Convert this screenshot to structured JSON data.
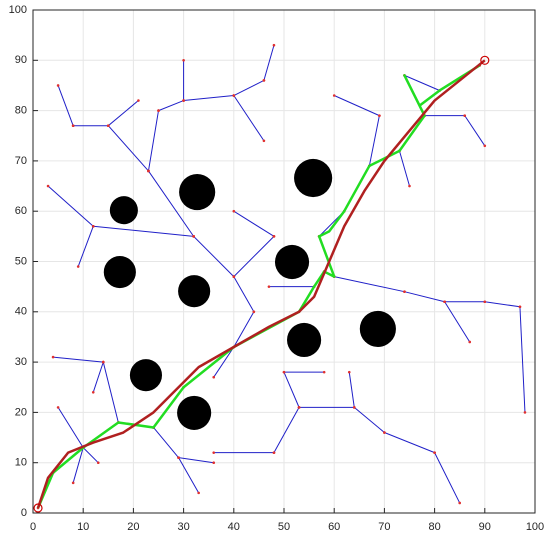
{
  "chart_data": {
    "type": "line",
    "xlim": [
      0,
      100
    ],
    "ylim": [
      0,
      100
    ],
    "xticks": [
      0,
      10,
      20,
      30,
      40,
      50,
      60,
      70,
      80,
      90,
      100
    ],
    "yticks": [
      0,
      10,
      20,
      30,
      40,
      50,
      60,
      70,
      80,
      90,
      100
    ],
    "grid": true,
    "series": [
      {
        "type": "scatter",
        "color": "#000000",
        "x": [
          32.7,
          55.8,
          18.1,
          17.3,
          32.1,
          51.6,
          54.0,
          68.7,
          22.5,
          32.1
        ],
        "values": [
          63.8,
          66.6,
          60.2,
          47.9,
          44.1,
          49.9,
          34.4,
          36.6,
          27.4,
          19.9
        ],
        "sizes": [
          3.6,
          3.8,
          2.8,
          3.2,
          3.2,
          3.4,
          3.4,
          3.6,
          3.2,
          3.4
        ]
      },
      {
        "type": "tree",
        "color": "#2020c8",
        "x": [
          1,
          4,
          null,
          4,
          10,
          null,
          10,
          17,
          null,
          17,
          24,
          null,
          24,
          30,
          null,
          10,
          8,
          null,
          10,
          5,
          null,
          10,
          13,
          null,
          17,
          14,
          null,
          14,
          4,
          null,
          14,
          12,
          null,
          24,
          29,
          null,
          29,
          36,
          null,
          29,
          33,
          null,
          30,
          40,
          null,
          40,
          36,
          null,
          40,
          44,
          null,
          44,
          40,
          null,
          40,
          32,
          null,
          32,
          12,
          null,
          12,
          3,
          null,
          12,
          9,
          null,
          32,
          23,
          null,
          23,
          15,
          null,
          15,
          8,
          null,
          8,
          5,
          null,
          15,
          21,
          null,
          23,
          25,
          null,
          25,
          30,
          null,
          30,
          30,
          null,
          30,
          40,
          null,
          40,
          46,
          null,
          46,
          48,
          null,
          40,
          46,
          null,
          40,
          53,
          null,
          53,
          56,
          null,
          56,
          58,
          null,
          58,
          60,
          null,
          60,
          57,
          null,
          57,
          62,
          null,
          62,
          67,
          null,
          67,
          73,
          null,
          73,
          78,
          null,
          78,
          74,
          null,
          74,
          81,
          null,
          81,
          89,
          null,
          78,
          86,
          null,
          86,
          90,
          null,
          73,
          75,
          null,
          67,
          69,
          null,
          69,
          60,
          null,
          60,
          74,
          null,
          74,
          82,
          null,
          82,
          90,
          null,
          90,
          97,
          null,
          97,
          98,
          null,
          82,
          87,
          null,
          53,
          64,
          null,
          64,
          70,
          null,
          70,
          80,
          null,
          80,
          85,
          null,
          53,
          48,
          null,
          48,
          36,
          null,
          53,
          50,
          null,
          50,
          58,
          null,
          64,
          63,
          null,
          40,
          48,
          null,
          48,
          40,
          null,
          56,
          47
        ],
        "values": [
          1,
          8,
          null,
          8,
          13,
          null,
          13,
          18,
          null,
          18,
          17,
          null,
          17,
          25,
          null,
          13,
          6,
          null,
          13,
          21,
          null,
          13,
          10,
          null,
          18,
          30,
          null,
          30,
          31,
          null,
          30,
          24,
          null,
          17,
          11,
          null,
          11,
          10,
          null,
          11,
          4,
          null,
          25,
          33,
          null,
          33,
          27,
          null,
          33,
          40,
          null,
          40,
          47,
          null,
          47,
          55,
          null,
          55,
          57,
          null,
          57,
          65,
          null,
          57,
          49,
          null,
          55,
          68,
          null,
          68,
          77,
          null,
          77,
          77,
          null,
          77,
          85,
          null,
          77,
          82,
          null,
          68,
          80,
          null,
          80,
          82,
          null,
          82,
          90,
          null,
          82,
          83,
          null,
          83,
          86,
          null,
          86,
          93,
          null,
          83,
          74,
          null,
          33,
          40,
          null,
          40,
          45,
          null,
          45,
          48,
          null,
          48,
          47,
          null,
          47,
          55,
          null,
          55,
          60,
          null,
          60,
          69,
          null,
          69,
          72,
          null,
          72,
          79,
          null,
          79,
          87,
          null,
          87,
          84,
          null,
          84,
          89,
          null,
          79,
          79,
          null,
          79,
          73,
          null,
          72,
          65,
          null,
          69,
          79,
          null,
          79,
          83,
          null,
          47,
          44,
          null,
          44,
          42,
          null,
          42,
          42,
          null,
          42,
          41,
          null,
          41,
          20,
          null,
          42,
          34,
          null,
          21,
          21,
          null,
          21,
          16,
          null,
          16,
          12,
          null,
          12,
          2,
          null,
          21,
          12,
          null,
          12,
          12,
          null,
          21,
          28,
          null,
          28,
          28,
          null,
          21,
          28,
          null,
          47,
          55,
          null,
          55,
          60,
          null,
          45,
          45
        ]
      },
      {
        "type": "line",
        "color": "#22dd22",
        "x": [
          1,
          4,
          10,
          17,
          24,
          30,
          40,
          53,
          56,
          58,
          60,
          57,
          59,
          62,
          67,
          73,
          78,
          74,
          77,
          81,
          89
        ],
        "values": [
          1,
          8,
          13,
          18,
          17,
          25,
          33,
          40,
          45,
          48,
          47,
          55,
          56,
          60,
          69,
          72,
          79,
          87,
          81,
          84,
          89
        ]
      },
      {
        "type": "line",
        "color": "#b02020",
        "x": [
          1,
          3,
          7,
          12,
          18,
          24,
          28,
          33,
          40,
          47,
          53,
          56,
          59,
          62,
          66,
          70,
          75,
          80,
          85,
          90
        ],
        "values": [
          1,
          7,
          12,
          14,
          16,
          20,
          24,
          29,
          33,
          37,
          40,
          43,
          50,
          57,
          64,
          70,
          76,
          82,
          86,
          90
        ]
      },
      {
        "type": "endpoint",
        "color": "#cc0000",
        "x": [
          1,
          90
        ],
        "values": [
          1,
          90
        ]
      }
    ]
  }
}
